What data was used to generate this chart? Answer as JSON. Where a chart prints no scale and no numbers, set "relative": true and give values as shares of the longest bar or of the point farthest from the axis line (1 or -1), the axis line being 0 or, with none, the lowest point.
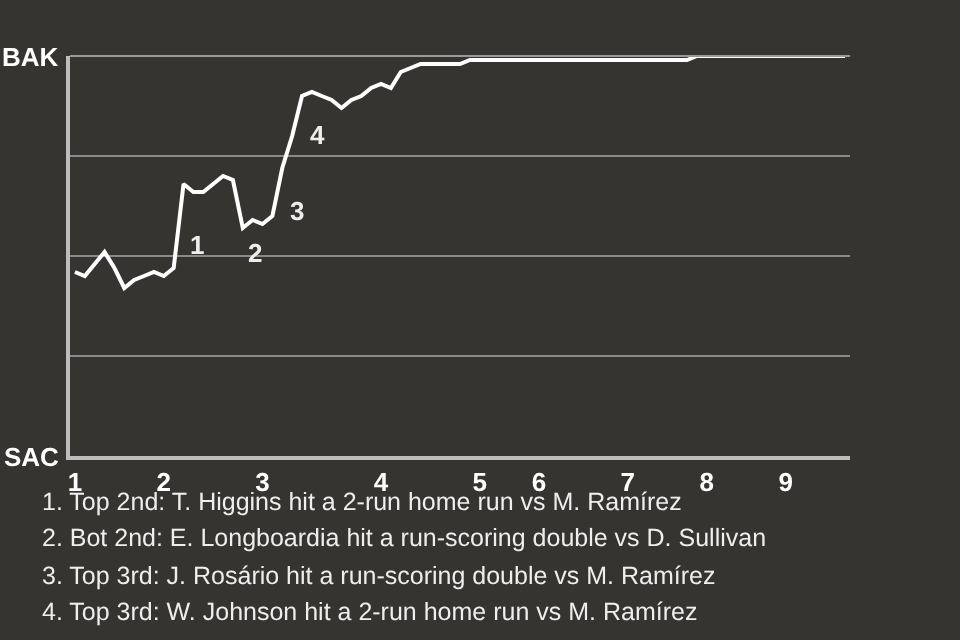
{
  "chart_data": {
    "type": "line",
    "relative": true,
    "categories": [
      "1",
      null,
      null,
      null,
      null,
      null,
      null,
      null,
      null,
      "2",
      null,
      null,
      null,
      null,
      null,
      null,
      null,
      null,
      null,
      "3",
      null,
      null,
      null,
      null,
      null,
      null,
      null,
      null,
      null,
      null,
      null,
      "4",
      null,
      null,
      null,
      null,
      null,
      null,
      null,
      null,
      null,
      "5",
      null,
      null,
      null,
      null,
      null,
      "6",
      null,
      null,
      null,
      null,
      null,
      null,
      null,
      null,
      "7",
      null,
      null,
      null,
      null,
      null,
      null,
      null,
      "8",
      null,
      null,
      null,
      null,
      null,
      null,
      null,
      "9",
      null,
      null,
      null,
      null,
      null,
      null
    ],
    "series": [
      {
        "color": "#ffffff",
        "values": [
          0.46,
          0.45,
          0.48,
          0.51,
          0.47,
          0.42,
          0.44,
          0.45,
          0.46,
          0.45,
          0.47,
          0.68,
          0.66,
          0.66,
          0.68,
          0.7,
          0.69,
          0.57,
          0.59,
          0.58,
          0.6,
          0.72,
          0.8,
          0.9,
          0.91,
          0.9,
          0.89,
          0.87,
          0.89,
          0.9,
          0.92,
          0.93,
          0.92,
          0.96,
          0.97,
          0.98,
          0.98,
          0.98,
          0.98,
          0.98,
          0.99,
          0.99,
          0.99,
          0.99,
          0.99,
          0.99,
          0.99,
          0.99,
          0.99,
          0.99,
          0.99,
          0.99,
          0.99,
          0.99,
          0.99,
          0.99,
          0.99,
          0.99,
          0.99,
          0.99,
          0.99,
          0.99,
          0.99,
          1,
          1,
          1,
          1,
          1,
          1,
          1,
          1,
          1,
          1,
          1,
          1,
          1,
          1,
          1,
          1
        ]
      }
    ],
    "grid": "y",
    "legend": false,
    "marker": "none",
    "line_style": "solid",
    "annotations": [
      "BAK",
      "SAC",
      "1",
      "2",
      "3",
      "4",
      "1. Top 2nd: T. Higgins hit a 2-run home run vs M. Ramírez",
      "2. Bot 2nd: E. Longboardia hit a run-scoring double vs D. Sullivan",
      "3. Top 3rd: J. Rosário hit a run-scoring double vs M. Ramírez",
      "4. Top 3rd: W. Johnson hit a 2-run home run vs M. Ramírez"
    ]
  }
}
